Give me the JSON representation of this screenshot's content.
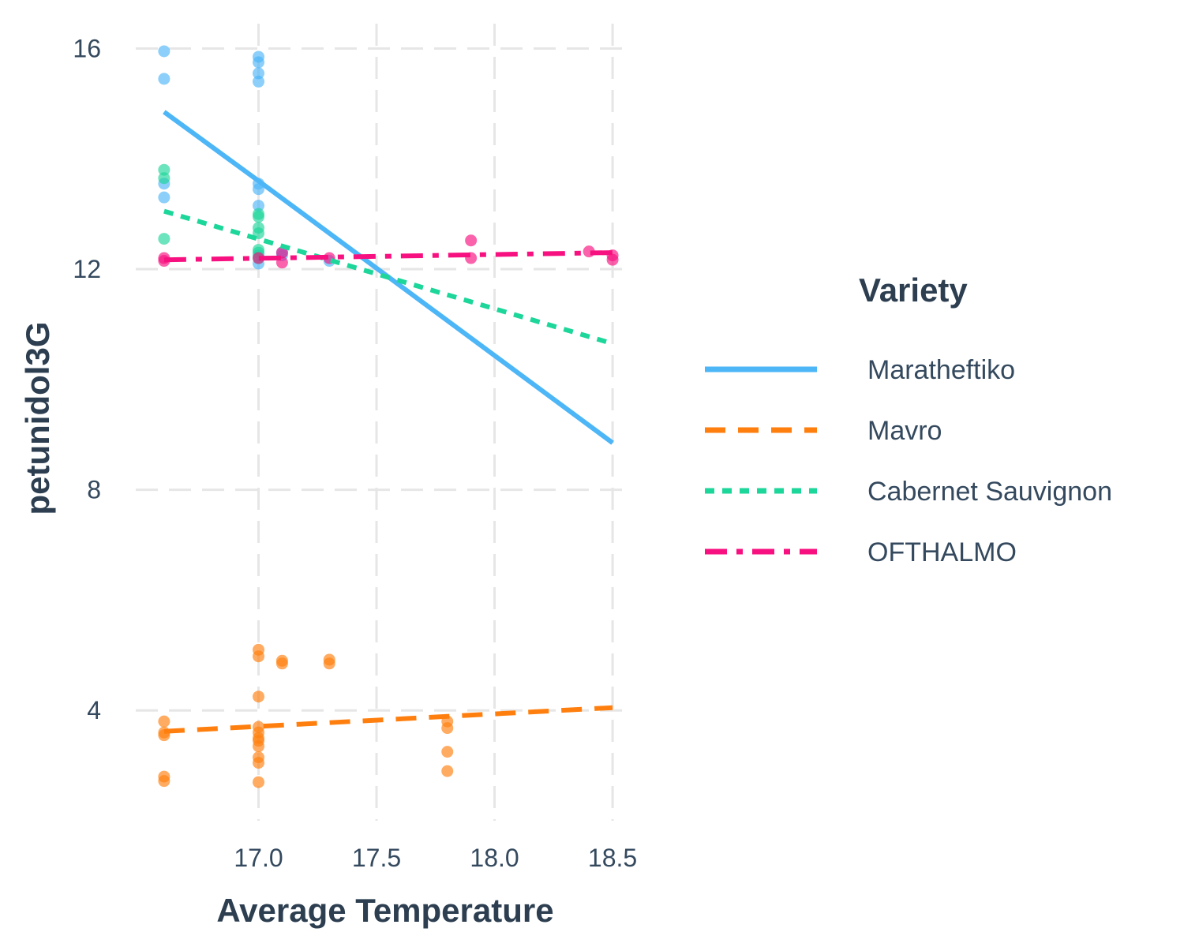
{
  "chart_data": {
    "type": "scatter",
    "xlabel": "Average Temperature",
    "ylabel": "petunidol3G",
    "xlim": [
      16.48,
      18.58
    ],
    "ylim": [
      2.0,
      16.45
    ],
    "x_ticks": [
      17.0,
      17.5,
      18.0,
      18.5
    ],
    "x_tick_labels": [
      "17.0",
      "17.5",
      "18.0",
      "18.5"
    ],
    "y_ticks": [
      4,
      8,
      12,
      16
    ],
    "y_tick_labels": [
      "4",
      "8",
      "12",
      "16"
    ],
    "grid": true,
    "legend": {
      "title": "Variety",
      "placement": "right"
    },
    "series": [
      {
        "name": "Maratheftiko",
        "color": "#4db6f7",
        "line_style": "solid",
        "fit_line": [
          [
            16.6,
            14.85
          ],
          [
            17.0,
            13.6
          ],
          [
            18.5,
            8.85
          ]
        ],
        "points": [
          [
            16.6,
            15.95
          ],
          [
            16.6,
            15.45
          ],
          [
            16.6,
            13.55
          ],
          [
            16.6,
            13.3
          ],
          [
            17.0,
            15.85
          ],
          [
            17.0,
            15.75
          ],
          [
            17.0,
            15.55
          ],
          [
            17.0,
            15.4
          ],
          [
            17.0,
            13.55
          ],
          [
            17.0,
            13.45
          ],
          [
            17.0,
            13.15
          ],
          [
            17.0,
            12.25
          ],
          [
            17.0,
            12.1
          ],
          [
            17.1,
            12.3
          ],
          [
            17.1,
            12.25
          ],
          [
            17.3,
            12.15
          ]
        ]
      },
      {
        "name": "Mavro",
        "color": "#ff7f0e",
        "line_style": "dashed",
        "fit_line": [
          [
            16.6,
            3.62
          ],
          [
            18.5,
            4.05
          ]
        ],
        "points": [
          [
            16.6,
            3.8
          ],
          [
            16.6,
            3.6
          ],
          [
            16.6,
            3.55
          ],
          [
            16.6,
            2.8
          ],
          [
            16.6,
            2.72
          ],
          [
            17.0,
            5.1
          ],
          [
            17.0,
            4.98
          ],
          [
            17.0,
            4.25
          ],
          [
            17.0,
            3.7
          ],
          [
            17.0,
            3.6
          ],
          [
            17.0,
            3.5
          ],
          [
            17.0,
            3.45
          ],
          [
            17.0,
            3.35
          ],
          [
            17.0,
            3.15
          ],
          [
            17.0,
            3.05
          ],
          [
            17.0,
            2.7
          ],
          [
            17.1,
            4.9
          ],
          [
            17.1,
            4.85
          ],
          [
            17.3,
            4.92
          ],
          [
            17.3,
            4.85
          ],
          [
            17.8,
            3.8
          ],
          [
            17.8,
            3.68
          ],
          [
            17.8,
            3.25
          ],
          [
            17.8,
            2.9
          ]
        ]
      },
      {
        "name": "Cabernet Sauvignon",
        "color": "#1dd69a",
        "line_style": "dotted",
        "fit_line": [
          [
            16.6,
            13.05
          ],
          [
            18.5,
            10.65
          ]
        ],
        "points": [
          [
            16.6,
            13.8
          ],
          [
            16.6,
            13.65
          ],
          [
            16.6,
            12.55
          ],
          [
            17.0,
            13.0
          ],
          [
            17.0,
            12.95
          ],
          [
            17.0,
            12.75
          ],
          [
            17.0,
            12.65
          ],
          [
            17.0,
            12.35
          ],
          [
            17.0,
            12.3
          ],
          [
            17.0,
            12.2
          ]
        ]
      },
      {
        "name": "OFTHALMO",
        "color": "#f7107f",
        "line_style": "dashdot",
        "fit_line": [
          [
            16.6,
            12.17
          ],
          [
            18.5,
            12.3
          ]
        ],
        "points": [
          [
            16.6,
            12.2
          ],
          [
            16.6,
            12.15
          ],
          [
            17.0,
            12.2
          ],
          [
            17.1,
            12.3
          ],
          [
            17.1,
            12.12
          ],
          [
            17.3,
            12.2
          ],
          [
            17.9,
            12.52
          ],
          [
            17.9,
            12.2
          ],
          [
            18.4,
            12.32
          ],
          [
            18.5,
            12.25
          ],
          [
            18.5,
            12.17
          ]
        ]
      }
    ]
  }
}
